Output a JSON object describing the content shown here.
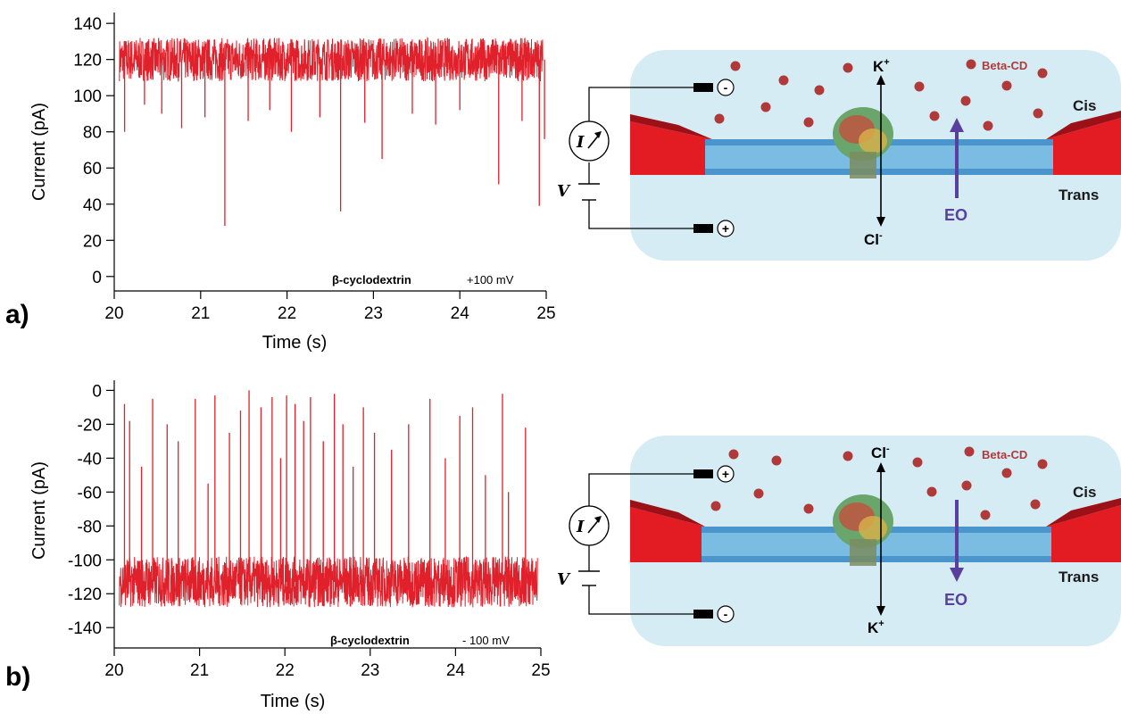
{
  "chart_data": [
    {
      "type": "line",
      "panel_label": "a)",
      "xlabel": "Time (s)",
      "ylabel": "Current (pA)",
      "xlim": [
        20,
        25
      ],
      "ylim": [
        -8,
        146
      ],
      "xticks": [
        "20",
        "21",
        "22",
        "23",
        "24",
        "25"
      ],
      "yticks": [
        "0",
        "20",
        "40",
        "60",
        "80",
        "100",
        "120",
        "140"
      ],
      "annotation_molecule": "β-cyclodextrin",
      "annotation_voltage": "+100 mV",
      "series": [
        {
          "color": "#e0202a",
          "baseline": 120,
          "noise_range": [
            108,
            132
          ],
          "events": [
            {
              "t": 20.12,
              "v": 80
            },
            {
              "t": 20.35,
              "v": 95
            },
            {
              "t": 20.55,
              "v": 90
            },
            {
              "t": 20.78,
              "v": 82
            },
            {
              "t": 21.05,
              "v": 88
            },
            {
              "t": 21.28,
              "v": 28
            },
            {
              "t": 21.55,
              "v": 86
            },
            {
              "t": 21.8,
              "v": 92
            },
            {
              "t": 22.05,
              "v": 80
            },
            {
              "t": 22.38,
              "v": 88
            },
            {
              "t": 22.62,
              "v": 36
            },
            {
              "t": 22.9,
              "v": 85
            },
            {
              "t": 23.1,
              "v": 65
            },
            {
              "t": 23.45,
              "v": 90
            },
            {
              "t": 23.72,
              "v": 84
            },
            {
              "t": 24.0,
              "v": 92
            },
            {
              "t": 24.45,
              "v": 51
            },
            {
              "t": 24.72,
              "v": 86
            },
            {
              "t": 24.92,
              "v": 39
            },
            {
              "t": 24.98,
              "v": 76
            }
          ]
        }
      ]
    },
    {
      "type": "line",
      "panel_label": "b)",
      "xlabel": "Time (s)",
      "ylabel": "Current (pA)",
      "xlim": [
        20,
        25
      ],
      "ylim": [
        -152,
        6
      ],
      "xticks": [
        "20",
        "21",
        "22",
        "23",
        "24",
        "25"
      ],
      "yticks": [
        "0",
        "-20",
        "-40",
        "-60",
        "-80",
        "-100",
        "-120",
        "-140"
      ],
      "annotation_molecule": "β-cyclodextrin",
      "annotation_voltage": "- 100 mV",
      "series": [
        {
          "color": "#e0202a",
          "baseline": -113,
          "noise_range": [
            -128,
            -98
          ],
          "events": [
            {
              "t": 20.12,
              "v": -8
            },
            {
              "t": 20.18,
              "v": -18
            },
            {
              "t": 20.32,
              "v": -45
            },
            {
              "t": 20.45,
              "v": -5
            },
            {
              "t": 20.62,
              "v": -20
            },
            {
              "t": 20.75,
              "v": -30
            },
            {
              "t": 20.95,
              "v": -5
            },
            {
              "t": 21.1,
              "v": -55
            },
            {
              "t": 21.18,
              "v": -3
            },
            {
              "t": 21.35,
              "v": -25
            },
            {
              "t": 21.48,
              "v": -12
            },
            {
              "t": 21.58,
              "v": 0
            },
            {
              "t": 21.72,
              "v": -10
            },
            {
              "t": 21.85,
              "v": -4
            },
            {
              "t": 21.95,
              "v": -40
            },
            {
              "t": 22.02,
              "v": -3
            },
            {
              "t": 22.12,
              "v": -8
            },
            {
              "t": 22.22,
              "v": -18
            },
            {
              "t": 22.3,
              "v": -4
            },
            {
              "t": 22.45,
              "v": -30
            },
            {
              "t": 22.58,
              "v": -2
            },
            {
              "t": 22.68,
              "v": -20
            },
            {
              "t": 22.8,
              "v": -45
            },
            {
              "t": 22.92,
              "v": -10
            },
            {
              "t": 23.05,
              "v": -25
            },
            {
              "t": 23.25,
              "v": -35
            },
            {
              "t": 23.45,
              "v": -20
            },
            {
              "t": 23.7,
              "v": -5
            },
            {
              "t": 23.88,
              "v": -40
            },
            {
              "t": 24.05,
              "v": -15
            },
            {
              "t": 24.2,
              "v": -10
            },
            {
              "t": 24.35,
              "v": -50
            },
            {
              "t": 24.55,
              "v": -2
            },
            {
              "t": 24.62,
              "v": -60
            },
            {
              "t": 24.82,
              "v": -22
            }
          ]
        }
      ]
    }
  ],
  "diagrams": [
    {
      "top_terminal": "-",
      "bottom_terminal": "+",
      "meter_label": "I",
      "voltage_label": "V",
      "ion_up": "K",
      "ion_up_sup": "+",
      "ion_down": "Cl",
      "ion_down_sup": "-",
      "molecule_label": "Beta-CD",
      "cis_label": "Cis",
      "trans_label": "Trans",
      "flow_label": "EO",
      "flow_direction": "up",
      "colors": {
        "bath": "#d6ecf5",
        "flow": "#5b3f9e",
        "support": "#e31b23",
        "molecule": "#b03a3a"
      }
    },
    {
      "top_terminal": "+",
      "bottom_terminal": "-",
      "meter_label": "I",
      "voltage_label": "V",
      "ion_up": "Cl",
      "ion_up_sup": "-",
      "ion_down": "K",
      "ion_down_sup": "+",
      "molecule_label": "Beta-CD",
      "cis_label": "Cis",
      "trans_label": "Trans",
      "flow_label": "EO",
      "flow_direction": "down",
      "colors": {
        "bath": "#d6ecf5",
        "flow": "#5b3f9e",
        "support": "#e31b23",
        "molecule": "#b03a3a"
      }
    }
  ]
}
